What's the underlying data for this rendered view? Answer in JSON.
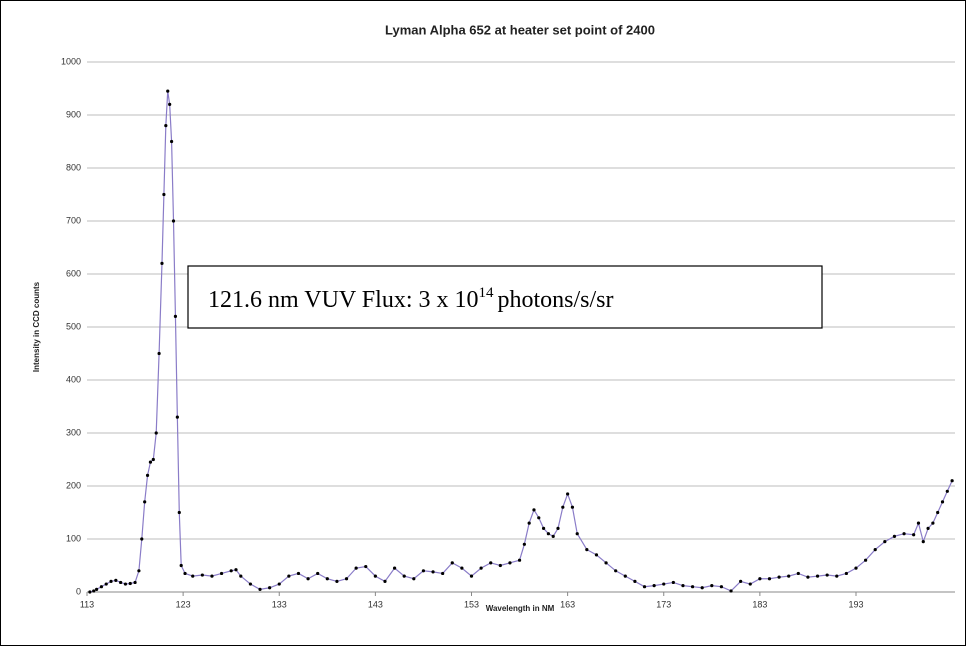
{
  "chart_data": {
    "type": "line",
    "title": "Lyman Alpha 652 at heater set point of 2400",
    "x_label": "Wavelength in NM",
    "y_label": "Intensity in CCD counts",
    "annotation": {
      "text": "121.6 nm VUV Flux: 3 x 10",
      "superscript": "14",
      "suffix": "photons/s/sr"
    },
    "x": [
      113.3,
      113.7,
      114.0,
      114.5,
      115.0,
      115.5,
      116.0,
      116.5,
      117.0,
      117.5,
      118.0,
      118.4,
      118.7,
      119.0,
      119.3,
      119.6,
      119.9,
      120.2,
      120.5,
      120.8,
      121.0,
      121.2,
      121.4,
      121.6,
      121.8,
      122.0,
      122.2,
      122.4,
      122.6,
      122.8,
      123.2,
      124,
      125,
      126,
      127,
      128,
      128.5,
      129,
      130,
      131,
      132,
      133,
      134,
      135,
      136,
      137,
      138,
      139,
      140,
      141,
      142,
      143,
      144,
      145,
      146,
      147,
      148,
      149,
      150,
      151,
      152,
      153,
      154,
      155,
      156,
      157,
      158,
      158.5,
      159,
      159.5,
      160,
      160.5,
      161,
      161.5,
      162,
      162.5,
      163,
      163.5,
      164,
      165,
      166,
      167,
      168,
      169,
      170,
      171,
      172,
      173,
      174,
      175,
      176,
      177,
      178,
      179,
      180,
      181,
      182,
      183,
      184,
      185,
      186,
      187,
      188,
      189,
      190,
      191,
      192,
      193,
      194,
      195,
      196,
      197,
      198,
      199,
      199.5,
      200,
      200.5,
      201,
      201.5,
      202,
      202.5,
      203
    ],
    "series": [
      {
        "name": "Intensity",
        "color": "#000000",
        "line_color": "#8a7cc8",
        "values": [
          0,
          2,
          5,
          10,
          15,
          20,
          22,
          18,
          15,
          16,
          18,
          40,
          100,
          170,
          220,
          245,
          250,
          300,
          450,
          620,
          750,
          880,
          945,
          920,
          850,
          700,
          520,
          330,
          150,
          50,
          35,
          30,
          32,
          30,
          35,
          40,
          42,
          30,
          15,
          5,
          8,
          15,
          30,
          35,
          25,
          35,
          25,
          20,
          25,
          45,
          48,
          30,
          20,
          45,
          30,
          25,
          40,
          38,
          35,
          55,
          45,
          30,
          45,
          55,
          50,
          55,
          60,
          90,
          130,
          155,
          140,
          120,
          110,
          105,
          120,
          160,
          185,
          160,
          110,
          80,
          70,
          55,
          40,
          30,
          20,
          10,
          12,
          15,
          18,
          12,
          10,
          8,
          12,
          10,
          2,
          20,
          15,
          25,
          25,
          28,
          30,
          35,
          28,
          30,
          32,
          30,
          35,
          45,
          60,
          80,
          95,
          105,
          110,
          108,
          130,
          95,
          120,
          130,
          150,
          170,
          190,
          210
        ]
      }
    ],
    "xlim": [
      113,
      203.3
    ],
    "ylim": [
      0,
      1000
    ],
    "xticks": [
      113,
      123,
      133,
      143,
      153,
      163,
      173,
      183,
      193
    ],
    "yticks": [
      0,
      100,
      200,
      300,
      400,
      500,
      600,
      700,
      800,
      900,
      1000
    ],
    "grid": true
  }
}
